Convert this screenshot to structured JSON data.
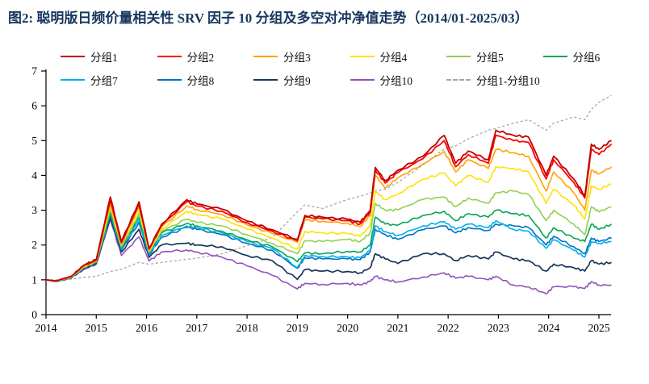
{
  "figure": {
    "title": "图2:  聪明版日频价量相关性 SRV 因子 10 分组及多空对冲净值走势（2014/01-2025/03）",
    "title_color": "#17375E",
    "background_color": "#FFFFFF",
    "axis_color": "#000000"
  },
  "chart_data": {
    "type": "line",
    "title": "聪明版日频价量相关性SRV因子10分组及多空对冲净值走势",
    "xlabel": "",
    "ylabel": "",
    "xlim": [
      2014,
      2025.4
    ],
    "ylim": [
      0,
      7
    ],
    "yticks": [
      0,
      1,
      2,
      3,
      4,
      5,
      6,
      7
    ],
    "xticks": [
      2014,
      2015,
      2016,
      2017,
      2018,
      2019,
      2020,
      2021,
      2022,
      2023,
      2024,
      2025
    ],
    "grid": false,
    "legend_position": "top",
    "x": [
      2014.0,
      2014.2,
      2014.5,
      2014.75,
      2015.0,
      2015.28,
      2015.5,
      2015.85,
      2016.05,
      2016.3,
      2016.8,
      2017.0,
      2017.5,
      2018.0,
      2018.5,
      2019.0,
      2019.15,
      2019.5,
      2020.0,
      2020.25,
      2020.45,
      2020.55,
      2020.75,
      2021.0,
      2021.5,
      2021.92,
      2022.15,
      2022.4,
      2022.8,
      2022.95,
      2023.3,
      2023.6,
      2023.95,
      2024.1,
      2024.5,
      2024.72,
      2024.85,
      2025.0,
      2025.25
    ],
    "series": [
      {
        "name": "分组1",
        "color": "#C00000",
        "dashed": false,
        "width": 1.8,
        "values": [
          1.0,
          0.97,
          1.1,
          1.42,
          1.58,
          3.38,
          2.1,
          3.24,
          1.9,
          2.6,
          3.3,
          3.18,
          3.03,
          2.69,
          2.44,
          2.16,
          2.85,
          2.8,
          2.74,
          2.65,
          3.0,
          4.23,
          3.85,
          4.15,
          4.55,
          5.15,
          4.35,
          4.7,
          4.45,
          5.3,
          5.15,
          5.1,
          4.0,
          4.55,
          3.9,
          3.42,
          4.9,
          4.75,
          5.0
        ]
      },
      {
        "name": "分组2",
        "color": "#FF0000",
        "dashed": false,
        "width": 1.8,
        "values": [
          1.0,
          0.97,
          1.09,
          1.41,
          1.56,
          3.3,
          2.07,
          3.18,
          1.88,
          2.56,
          3.24,
          3.12,
          2.97,
          2.64,
          2.4,
          2.12,
          2.8,
          2.75,
          2.7,
          2.6,
          2.95,
          4.15,
          3.78,
          4.08,
          4.48,
          5.0,
          4.25,
          4.6,
          4.35,
          5.15,
          5.0,
          4.95,
          3.9,
          4.45,
          3.8,
          3.35,
          4.75,
          4.6,
          4.9
        ]
      },
      {
        "name": "分组3",
        "color": "#FFA200",
        "dashed": false,
        "width": 1.6,
        "values": [
          1.0,
          0.97,
          1.08,
          1.4,
          1.55,
          3.22,
          2.03,
          3.1,
          1.86,
          2.52,
          3.12,
          3.02,
          2.88,
          2.58,
          2.33,
          2.08,
          2.72,
          2.68,
          2.63,
          2.53,
          2.85,
          4.0,
          3.63,
          3.93,
          4.33,
          4.69,
          4.1,
          4.45,
          4.2,
          4.75,
          4.65,
          4.55,
          3.55,
          4.1,
          3.5,
          3.0,
          4.15,
          4.05,
          4.25
        ]
      },
      {
        "name": "分组4",
        "color": "#FFE100",
        "dashed": false,
        "width": 1.6,
        "values": [
          1.0,
          0.96,
          1.08,
          1.38,
          1.53,
          3.12,
          2.0,
          3.0,
          1.83,
          2.45,
          2.97,
          2.88,
          2.75,
          2.46,
          2.2,
          1.89,
          2.39,
          2.35,
          2.33,
          2.25,
          2.55,
          3.54,
          3.3,
          3.47,
          3.89,
          4.07,
          3.7,
          4.0,
          3.8,
          4.25,
          4.2,
          4.1,
          3.2,
          3.6,
          3.15,
          2.75,
          3.7,
          3.6,
          3.75
        ]
      },
      {
        "name": "分组5",
        "color": "#92D050",
        "dashed": false,
        "width": 1.6,
        "values": [
          1.0,
          0.96,
          1.07,
          1.37,
          1.52,
          3.02,
          1.95,
          2.9,
          1.8,
          2.4,
          2.74,
          2.65,
          2.55,
          2.3,
          2.05,
          1.75,
          2.12,
          2.1,
          2.16,
          2.1,
          2.35,
          3.2,
          3.0,
          3.01,
          3.31,
          3.38,
          3.1,
          3.35,
          3.2,
          3.5,
          3.55,
          3.45,
          2.7,
          3.0,
          2.6,
          2.3,
          3.1,
          2.95,
          3.1
        ]
      },
      {
        "name": "分组6",
        "color": "#00A651",
        "dashed": false,
        "width": 1.6,
        "values": [
          1.0,
          0.96,
          1.07,
          1.36,
          1.51,
          2.95,
          1.92,
          2.8,
          1.78,
          2.35,
          2.62,
          2.55,
          2.4,
          2.15,
          1.95,
          1.52,
          1.77,
          1.75,
          1.82,
          1.8,
          2.0,
          2.8,
          2.6,
          2.57,
          2.85,
          2.97,
          2.7,
          2.9,
          2.8,
          3.0,
          2.9,
          2.85,
          2.2,
          2.5,
          2.2,
          2.1,
          2.6,
          2.45,
          2.6
        ]
      },
      {
        "name": "分组7",
        "color": "#00B0F0",
        "dashed": false,
        "width": 1.6,
        "values": [
          1.0,
          0.95,
          1.06,
          1.35,
          1.5,
          2.9,
          1.88,
          2.72,
          1.75,
          2.28,
          2.55,
          2.5,
          2.35,
          2.1,
          1.9,
          1.35,
          1.7,
          1.67,
          1.66,
          1.63,
          1.85,
          2.55,
          2.38,
          2.28,
          2.55,
          2.67,
          2.45,
          2.6,
          2.5,
          2.7,
          2.45,
          2.4,
          1.9,
          2.15,
          1.85,
          1.65,
          2.1,
          2.05,
          2.1
        ]
      },
      {
        "name": "分组8",
        "color": "#0070C0",
        "dashed": false,
        "width": 1.6,
        "values": [
          1.0,
          0.95,
          1.06,
          1.34,
          1.49,
          2.85,
          1.85,
          2.65,
          1.72,
          2.22,
          2.51,
          2.45,
          2.3,
          2.05,
          1.85,
          1.33,
          1.63,
          1.6,
          1.6,
          1.58,
          1.8,
          2.45,
          2.3,
          2.16,
          2.44,
          2.55,
          2.35,
          2.5,
          2.42,
          2.6,
          2.55,
          2.5,
          2.0,
          2.25,
          1.95,
          1.75,
          2.2,
          2.1,
          2.2
        ]
      },
      {
        "name": "分组9",
        "color": "#17365D",
        "dashed": false,
        "width": 1.7,
        "values": [
          1.0,
          0.95,
          1.05,
          1.32,
          1.47,
          2.8,
          1.8,
          2.45,
          1.65,
          2.0,
          2.05,
          2.0,
          1.95,
          1.7,
          1.55,
          1.01,
          1.29,
          1.25,
          1.24,
          1.2,
          1.35,
          1.75,
          1.6,
          1.47,
          1.75,
          1.75,
          1.55,
          1.7,
          1.6,
          1.8,
          1.6,
          1.55,
          1.25,
          1.45,
          1.35,
          1.25,
          1.55,
          1.45,
          1.5
        ]
      },
      {
        "name": "分组10",
        "color": "#9351BD",
        "dashed": false,
        "width": 1.6,
        "values": [
          1.0,
          0.95,
          1.05,
          1.3,
          1.45,
          2.74,
          1.7,
          2.23,
          1.54,
          1.8,
          1.86,
          1.8,
          1.65,
          1.4,
          1.13,
          0.74,
          0.9,
          0.87,
          0.9,
          0.85,
          0.95,
          1.1,
          1.0,
          0.94,
          1.08,
          1.2,
          1.05,
          1.1,
          1.0,
          1.1,
          0.85,
          0.8,
          0.6,
          0.8,
          0.8,
          0.75,
          0.95,
          0.85,
          0.85
        ]
      },
      {
        "name": "分组1-分组10",
        "color": "#A6A6A6",
        "dashed": true,
        "width": 1.3,
        "values": [
          1.0,
          1.0,
          1.02,
          1.07,
          1.1,
          1.24,
          1.3,
          1.5,
          1.45,
          1.5,
          1.59,
          1.62,
          1.75,
          1.98,
          2.21,
          2.95,
          3.15,
          3.05,
          3.31,
          3.4,
          3.5,
          3.55,
          3.6,
          3.8,
          4.3,
          4.76,
          4.85,
          5.05,
          5.3,
          5.35,
          5.5,
          5.6,
          5.3,
          5.5,
          5.68,
          5.6,
          5.9,
          6.1,
          6.3
        ]
      }
    ]
  }
}
